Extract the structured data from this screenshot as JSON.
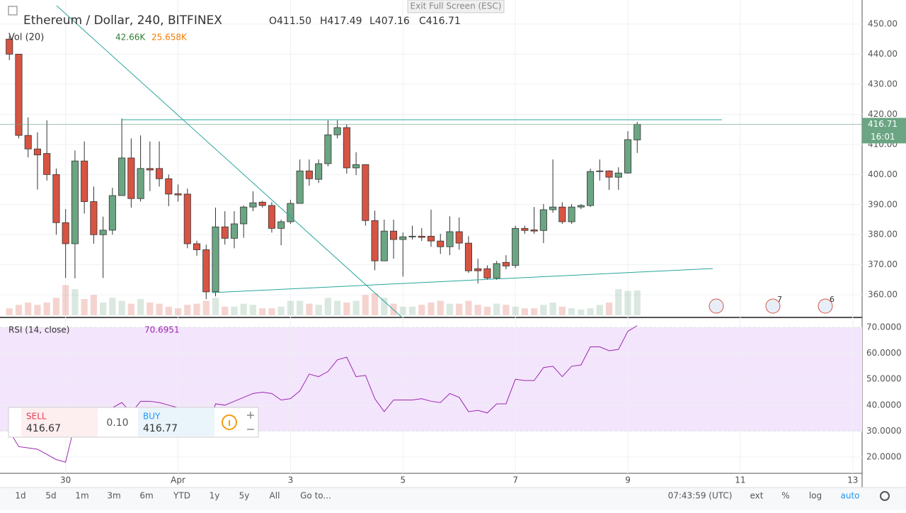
{
  "header": {
    "symbol": "Ethereum / Dollar, 240, BITFINEX",
    "ohlc": [
      "O411.50",
      "H417.49",
      "L407.16",
      "C416.71"
    ],
    "volume_label": "Vol (20)",
    "volume_value": "42.66K",
    "volume_ma": "25.658K",
    "exit_button": "Exit Full Screen (ESC)"
  },
  "chart_data": [
    {
      "type": "candlestick",
      "up_color": "#6ba583",
      "down_color": "#d75442",
      "open": [
        445,
        440,
        413,
        408.5,
        407,
        400,
        384,
        377,
        404.5,
        391,
        380,
        381.5,
        393,
        405.5,
        392,
        402,
        402,
        398.6,
        393.6,
        393.5,
        377,
        375,
        361,
        382.6,
        378.8,
        383.6,
        389.2,
        390.8,
        389.7,
        382.1,
        384.3,
        390.4,
        401.2,
        398.4,
        403.6,
        413.2,
        415.6,
        402.2,
        403.3,
        384.7,
        371.3,
        381.2,
        378.4,
        379.3,
        379.5,
        379.5,
        377.9,
        376,
        381,
        377.2,
        368.7,
        368.7,
        365.6,
        370.8,
        369.8,
        382.1,
        381.6,
        381.4,
        388.3,
        389.2,
        384.3,
        389.2,
        389.7,
        401,
        401.2,
        399.1,
        400.5,
        411.5
      ],
      "high": [
        446,
        440,
        419,
        414,
        418,
        402,
        388.5,
        408,
        411,
        396,
        386,
        395.6,
        418.6,
        412,
        413,
        411,
        411,
        400,
        396.7,
        395.3,
        378,
        376.7,
        389,
        387.8,
        387.8,
        389.7,
        394.4,
        391.3,
        390.8,
        385,
        391.6,
        405,
        405,
        405,
        418,
        418,
        416.7,
        407.4,
        403.3,
        388,
        385,
        385,
        380.7,
        383,
        382.2,
        388.3,
        380.3,
        386.1,
        385.7,
        379.5,
        372,
        369.8,
        371.3,
        373.2,
        383,
        383,
        389.2,
        390.2,
        405,
        390.8,
        390.2,
        390.2,
        401.9,
        405,
        401.4,
        402.4,
        414.4,
        417.49
      ],
      "low": [
        438,
        412,
        405.7,
        395,
        398,
        380,
        365.6,
        365.5,
        387,
        377,
        365.6,
        380,
        393,
        389,
        391,
        394.5,
        396,
        389.5,
        391,
        375.5,
        373,
        358.6,
        359.5,
        376.7,
        375.5,
        379,
        387.8,
        389,
        380.7,
        376.5,
        383.6,
        390.4,
        396.3,
        397.2,
        402.7,
        412,
        400.3,
        399.8,
        383,
        368.2,
        371.3,
        372,
        366.1,
        378.4,
        377.9,
        376,
        373.6,
        373.2,
        375,
        367.3,
        363.8,
        365,
        365,
        368.5,
        368.9,
        380.3,
        380.3,
        377.2,
        387.3,
        383.6,
        383.6,
        388.5,
        389.2,
        398,
        394.9,
        394.9,
        400.3,
        407.16
      ],
      "close": [
        440,
        413,
        408.5,
        406.5,
        400,
        384,
        377,
        404.5,
        391,
        380,
        381.5,
        393,
        405.5,
        392,
        402,
        401.5,
        398.6,
        393.5,
        393.2,
        377,
        375,
        361,
        382.6,
        378.8,
        383.6,
        389.2,
        390.6,
        389.7,
        382.1,
        384.3,
        390.4,
        401.2,
        398.6,
        403.6,
        413.2,
        415.6,
        402.2,
        403.3,
        384.7,
        371.3,
        381.2,
        378.4,
        379.3,
        379.5,
        379.1,
        377.9,
        376,
        381,
        377.2,
        368,
        368,
        365.6,
        370.4,
        369.6,
        382.1,
        381.4,
        381.2,
        388.3,
        389.2,
        384.3,
        389.2,
        389.7,
        401,
        401.2,
        399.1,
        400.5,
        411.6,
        416.71
      ],
      "volume": [
        12,
        18,
        22,
        18,
        22,
        30,
        52,
        45,
        28,
        35,
        22,
        30,
        25,
        20,
        28,
        22,
        20,
        15,
        12,
        18,
        20,
        25,
        30,
        15,
        15,
        20,
        18,
        12,
        12,
        15,
        25,
        25,
        20,
        18,
        30,
        25,
        22,
        25,
        35,
        38,
        30,
        20,
        15,
        15,
        18,
        22,
        25,
        20,
        20,
        25,
        18,
        15,
        20,
        18,
        15,
        12,
        12,
        18,
        22,
        15,
        12,
        10,
        12,
        18,
        22,
        45,
        42,
        42.66
      ],
      "xlim": [
        -1,
        91
      ],
      "xticks": [
        {
          "value": 6,
          "label": "30"
        },
        {
          "value": 18,
          "label": "Apr"
        },
        {
          "value": 30,
          "label": "3"
        },
        {
          "value": 42,
          "label": "5"
        },
        {
          "value": 54,
          "label": "7"
        },
        {
          "value": 66,
          "label": "9"
        },
        {
          "value": 78,
          "label": "11"
        },
        {
          "value": 90,
          "label": "13"
        }
      ],
      "ylim": [
        352.5,
        458
      ],
      "yticks": [
        {
          "value": 360,
          "label": "360.00"
        },
        {
          "value": 370,
          "label": "370.00"
        },
        {
          "value": 380,
          "label": "380.00"
        },
        {
          "value": 390,
          "label": "390.00"
        },
        {
          "value": 400,
          "label": "400.00"
        },
        {
          "value": 410,
          "label": "410.00"
        },
        {
          "value": 420,
          "label": "420.00"
        },
        {
          "value": 430,
          "label": "430.00"
        },
        {
          "value": 440,
          "label": "440.00"
        },
        {
          "value": 450,
          "label": "450.00"
        }
      ],
      "grid": true,
      "last_price": {
        "value": 416.71,
        "label": "416.71"
      },
      "countdown": "16:01",
      "events": [
        "7",
        "6"
      ]
    },
    {
      "type": "line",
      "title": "RSI (14, close)",
      "last_label": "70.6951",
      "color": "#9c27b0",
      "values": [
        30,
        24,
        23.5,
        23,
        21,
        19,
        18,
        33,
        36,
        35,
        36,
        39,
        41,
        37,
        41.5,
        41.5,
        41,
        40,
        39,
        33,
        32,
        29,
        40.5,
        40,
        41.5,
        43,
        44.5,
        45,
        44.5,
        42,
        42.5,
        45.5,
        52,
        51,
        53,
        57.5,
        58.5,
        51,
        51.5,
        42.5,
        37.5,
        42,
        42,
        42,
        42.5,
        41.5,
        41,
        44.5,
        43,
        37.5,
        38,
        37,
        40.5,
        40.5,
        50,
        49.5,
        49.5,
        54.5,
        55,
        51,
        55,
        55.5,
        62.5,
        62.5,
        61,
        61.5,
        68.5,
        70.7
      ],
      "band": [
        30,
        70
      ],
      "ylim": [
        13.7,
        73.3
      ],
      "yticks": [
        {
          "value": 20,
          "label": "20.0000"
        },
        {
          "value": 30,
          "label": "30.0000"
        },
        {
          "value": 40,
          "label": "40.0000"
        },
        {
          "value": 50,
          "label": "50.0000"
        },
        {
          "value": 60,
          "label": "60.0000"
        },
        {
          "value": 70,
          "label": "70.0000"
        }
      ]
    }
  ],
  "trade": {
    "sell_label": "SELL",
    "sell_price": "416.67",
    "spread": "0.10",
    "buy_label": "BUY",
    "buy_price": "416.77"
  },
  "toolbar": {
    "ranges": [
      "1d",
      "5d",
      "1m",
      "3m",
      "6m",
      "YTD",
      "1y",
      "5y",
      "All",
      "Go to..."
    ],
    "time": "07:43:59 (UTC)",
    "options": [
      "ext",
      "%",
      "log",
      "auto"
    ]
  }
}
